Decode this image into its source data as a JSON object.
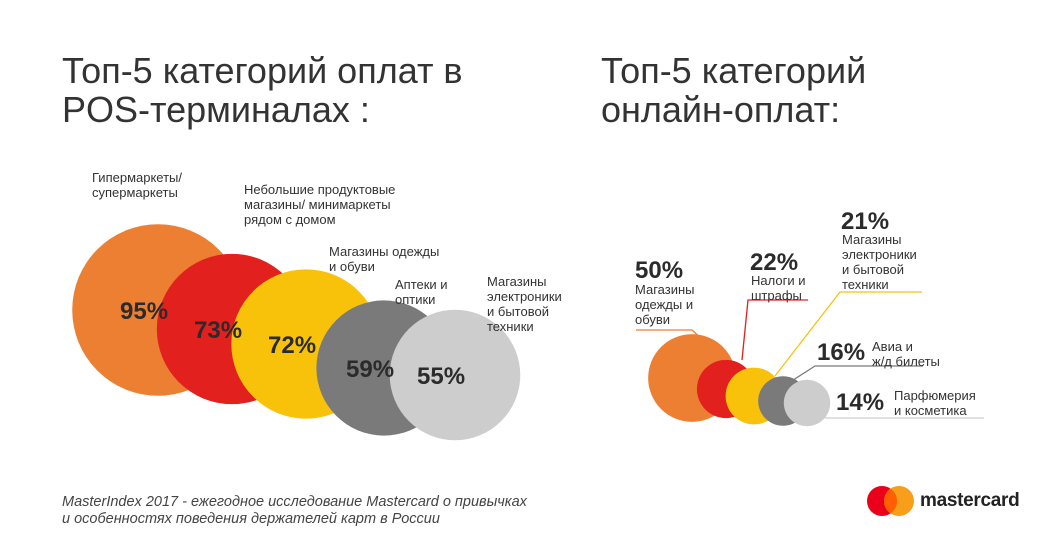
{
  "titles": {
    "pos": [
      "Топ-5 категорий оплат в",
      "POS-терминалах :"
    ],
    "online": [
      "Топ-5 категорий",
      "онлайн-оплат:"
    ]
  },
  "colors": {
    "orange": "#ED7F32",
    "red": "#E2201E",
    "yellow": "#F9C20A",
    "gray": "#7A7A7A",
    "lightgray": "#CDCDCD"
  },
  "chart_data": [
    {
      "type": "bubble",
      "title": "Топ-5 категорий оплат в POS-терминалах :",
      "categories": [
        "Гипермаркеты/ супермаркеты",
        "Небольшие продуктовые магазины/ минимаркеты рядом с домом",
        "Магазины одежды и обуви",
        "Аптеки и оптики",
        "Магазины электроники и бытовой техники"
      ],
      "values": [
        95,
        73,
        72,
        59,
        55
      ],
      "value_labels": [
        "95%",
        "73%",
        "72%",
        "59%",
        "55%"
      ],
      "category_lines": [
        [
          "Гипермаркеты/",
          "супермаркеты"
        ],
        [
          "Небольшие продуктовые",
          "магазины/ минимаркеты",
          "рядом с домом"
        ],
        [
          "Магазины одежды",
          "и обуви"
        ],
        [
          "Аптеки и",
          "оптики"
        ],
        [
          "Магазины",
          "электроники",
          "и бытовой",
          "техники"
        ]
      ],
      "colors": [
        "#ED7F32",
        "#E2201E",
        "#F9C20A",
        "#7A7A7A",
        "#CDCDCD"
      ]
    },
    {
      "type": "bubble",
      "title": "Топ-5 категорий онлайн-оплат:",
      "categories": [
        "Магазины одежды и обуви",
        "Налоги и штрафы",
        "Магазины электроники и бытовой техники",
        "Авиа и ж/д билеты",
        "Парфюмерия и косметика"
      ],
      "values": [
        50,
        22,
        21,
        16,
        14
      ],
      "value_labels": [
        "50%",
        "22%",
        "21%",
        "16%",
        "14%"
      ],
      "category_lines": [
        [
          "Магазины",
          "одежды и",
          "обуви"
        ],
        [
          "Налоги и",
          "штрафы"
        ],
        [
          "Магазины",
          "электроники",
          "и бытовой",
          "техники"
        ],
        [
          "Авиа и",
          "ж/д билеты"
        ],
        [
          "Парфюмерия",
          "и косметика"
        ]
      ],
      "colors": [
        "#ED7F32",
        "#E2201E",
        "#F9C20A",
        "#7A7A7A",
        "#CDCDCD"
      ]
    }
  ],
  "footnote": [
    "MasterIndex 2017 - ежегодное исследование Mastercard о привычках",
    "и особенностях поведения держателей карт в России"
  ],
  "logo": {
    "text": "mastercard",
    "colors": [
      "#EB001B",
      "#F79E1B",
      "#FF5F00"
    ]
  }
}
